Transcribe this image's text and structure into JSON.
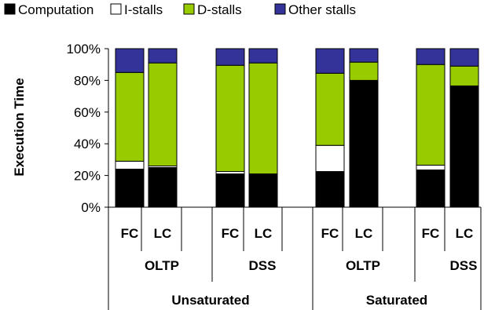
{
  "chart_data": {
    "type": "bar",
    "stacked": true,
    "ylabel": "Execution Time",
    "ylim": [
      0,
      100
    ],
    "yticks": [
      "0%",
      "20%",
      "40%",
      "60%",
      "80%",
      "100%"
    ],
    "legend_position": "top",
    "series": [
      {
        "name": "Computation",
        "color": "#000000"
      },
      {
        "name": "I-stalls",
        "color": "#ffffff"
      },
      {
        "name": "D-stalls",
        "color": "#99cc00"
      },
      {
        "name": "Other stalls",
        "color": "#333399"
      }
    ],
    "bars": [
      {
        "label": "FC",
        "values": [
          24,
          5,
          56,
          15
        ]
      },
      {
        "label": "LC",
        "values": [
          25,
          1,
          65,
          9
        ]
      },
      {
        "label": "FC",
        "values": [
          21,
          1.5,
          67,
          10.5
        ]
      },
      {
        "label": "LC",
        "values": [
          21,
          0,
          70,
          9
        ]
      },
      {
        "label": "FC",
        "values": [
          22.5,
          16.5,
          45.5,
          15.5
        ]
      },
      {
        "label": "LC",
        "values": [
          80,
          0,
          11.5,
          8.5
        ]
      },
      {
        "label": "FC",
        "values": [
          23.5,
          3,
          63.5,
          10
        ]
      },
      {
        "label": "LC",
        "values": [
          76.5,
          0,
          12.5,
          11
        ]
      }
    ],
    "groups": [
      "OLTP",
      "DSS",
      "OLTP",
      "DSS"
    ],
    "supergroups": [
      "Unsaturated",
      "Saturated"
    ]
  }
}
